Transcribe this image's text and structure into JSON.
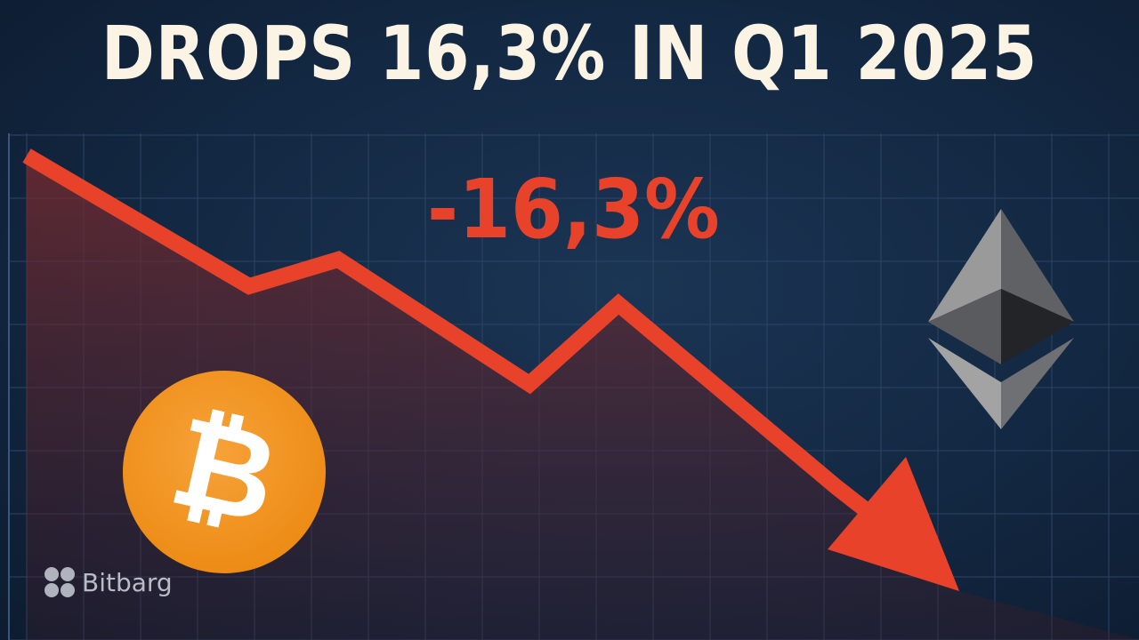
{
  "headline": "DROPS 16,3% IN Q1 2025",
  "change_label": "-16,3%",
  "watermark": {
    "brand": "Bitbarg",
    "icon": "four-dots-logo-icon"
  },
  "icons": {
    "bitcoin": {
      "name": "bitcoin-logo-icon",
      "glyph": "₿",
      "color": "#f2931f"
    },
    "ethereum": {
      "name": "ethereum-logo-icon"
    }
  },
  "colors": {
    "trend_line": "#e8432a",
    "headline_text": "#fbf3e4",
    "background": "#142a45"
  },
  "chart_data": {
    "type": "line",
    "title": "",
    "xlabel": "",
    "ylabel": "",
    "x": [
      0,
      1,
      2,
      3,
      4,
      5,
      6
    ],
    "series": [
      {
        "values": [
          100,
          78,
          82,
          63,
          78,
          55,
          30
        ]
      }
    ],
    "grid": true,
    "trend": "down"
  }
}
